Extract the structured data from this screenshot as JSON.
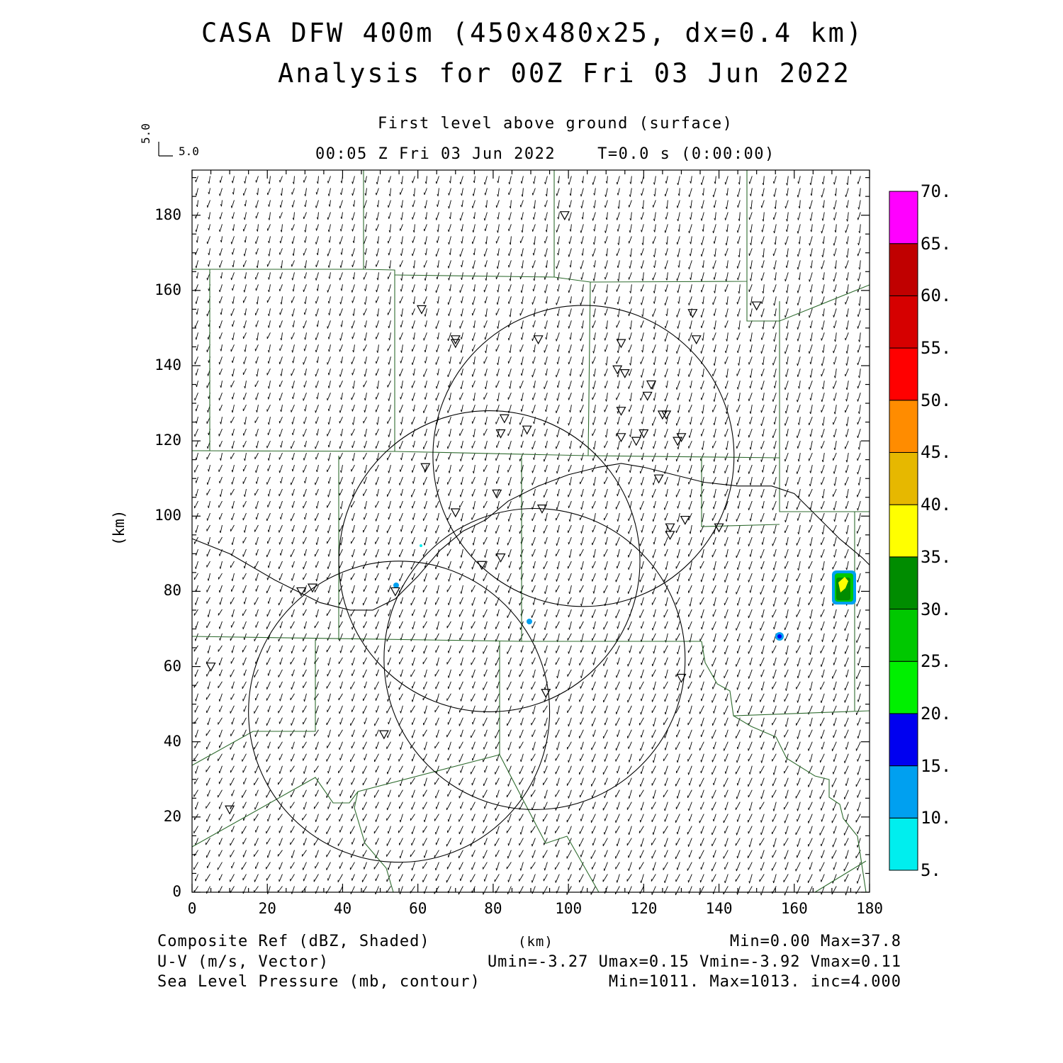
{
  "title": {
    "line1": "CASA DFW 400m (450x480x25, dx=0.4 km)",
    "line2": "Analysis for 00Z Fri 03 Jun 2022"
  },
  "subtitle": {
    "level": "First level above ground (surface)",
    "time": "00:05 Z Fri 03 Jun 2022    T=0.0 s (0:00:00)"
  },
  "vector_key": {
    "u_label": "5.0",
    "v_label": "5.0"
  },
  "axes": {
    "x_ticks": [
      "0",
      "20",
      "40",
      "60",
      "80",
      "100",
      "120",
      "140",
      "160",
      "180"
    ],
    "y_ticks": [
      "0",
      "20",
      "40",
      "60",
      "80",
      "100",
      "120",
      "140",
      "160",
      "180"
    ],
    "xlabel": "(km)",
    "ylabel": "(km)",
    "xlim": [
      0,
      180
    ],
    "ylim": [
      0,
      192
    ]
  },
  "colorbar": {
    "labels": [
      "5.",
      "10.",
      "15.",
      "20.",
      "25.",
      "30.",
      "35.",
      "40.",
      "45.",
      "50.",
      "55.",
      "60.",
      "65.",
      "70."
    ],
    "colors": [
      "#00eeee",
      "#00a0f0",
      "#0000f0",
      "#00f000",
      "#00c800",
      "#008c00",
      "#ffff00",
      "#e6b800",
      "#ff8c00",
      "#ff0000",
      "#d60000",
      "#c00000",
      "#ff00ff"
    ]
  },
  "footer": {
    "left1": "Composite Ref (dBZ, Shaded)",
    "left2": "U-V (m/s, Vector)",
    "left3": "Sea Level Pressure (mb, contour)",
    "center1": "(km)",
    "right1": "Min=0.00 Max=37.8",
    "right2": "Umin=-3.27 Umax=0.15 Vmin=-3.92 Vmax=0.11",
    "right3": "Min=1011. Max=1013. inc=4.000"
  },
  "map_data": {
    "radar_rings": [
      {
        "center": [
          104,
          116
        ],
        "radius": 40
      },
      {
        "center": [
          79,
          88
        ],
        "radius": 40
      },
      {
        "center": [
          91,
          62
        ],
        "radius": 40
      },
      {
        "center": [
          55,
          48
        ],
        "radius": 40
      }
    ],
    "radar_stations": [
      [
        99,
        180
      ],
      [
        61,
        155
      ],
      [
        70,
        147
      ],
      [
        70,
        146
      ],
      [
        92,
        147
      ],
      [
        133,
        154
      ],
      [
        134,
        147
      ],
      [
        150,
        156
      ],
      [
        114,
        146
      ],
      [
        113,
        139
      ],
      [
        115,
        138
      ],
      [
        122,
        135
      ],
      [
        121,
        132
      ],
      [
        114,
        128
      ],
      [
        125,
        127
      ],
      [
        126,
        127
      ],
      [
        83,
        126
      ],
      [
        82,
        122
      ],
      [
        89,
        123
      ],
      [
        114,
        121
      ],
      [
        118,
        120
      ],
      [
        120,
        122
      ],
      [
        130,
        121
      ],
      [
        129,
        120
      ],
      [
        62,
        113
      ],
      [
        124,
        110
      ],
      [
        81,
        106
      ],
      [
        70,
        101
      ],
      [
        93,
        102
      ],
      [
        131,
        99
      ],
      [
        127,
        97
      ],
      [
        127,
        95
      ],
      [
        140,
        97
      ],
      [
        82,
        89
      ],
      [
        77,
        87
      ],
      [
        32,
        81
      ],
      [
        29,
        80
      ],
      [
        54,
        80
      ],
      [
        5,
        60
      ],
      [
        130,
        57
      ],
      [
        94,
        53
      ],
      [
        51,
        42
      ],
      [
        10,
        22
      ]
    ],
    "pressure_contours": [
      [
        [
          0,
          94
        ],
        [
          10,
          90
        ],
        [
          22,
          83
        ],
        [
          34,
          77
        ],
        [
          42,
          75
        ],
        [
          48,
          75
        ],
        [
          54,
          78
        ],
        [
          60,
          84
        ],
        [
          66,
          91
        ],
        [
          72,
          96
        ],
        [
          78,
          99
        ],
        [
          84,
          104
        ],
        [
          92,
          108
        ],
        [
          100,
          111
        ],
        [
          108,
          113
        ],
        [
          114,
          114
        ],
        [
          120,
          113
        ],
        [
          128,
          111
        ],
        [
          136,
          109
        ],
        [
          145,
          108
        ],
        [
          154,
          108
        ],
        [
          160,
          106
        ],
        [
          166,
          100
        ],
        [
          172,
          94
        ],
        [
          178,
          89
        ],
        [
          180,
          87
        ]
      ]
    ],
    "reflectivity_cells": [
      {
        "x": 174,
        "y": 81.5,
        "max_dbz": 37.8
      },
      {
        "x": 156,
        "y": 68,
        "max_dbz": 15
      },
      {
        "x": 54,
        "y": 81.5,
        "max_dbz": 10
      },
      {
        "x": 89,
        "y": 72,
        "max_dbz": 10
      },
      {
        "x": 61,
        "y": 92,
        "max_dbz": 5
      }
    ],
    "wind_field": {
      "u_typical": -1.0,
      "v_typical": -3.0,
      "u_max": 0.15,
      "v_min": -3.92
    }
  }
}
